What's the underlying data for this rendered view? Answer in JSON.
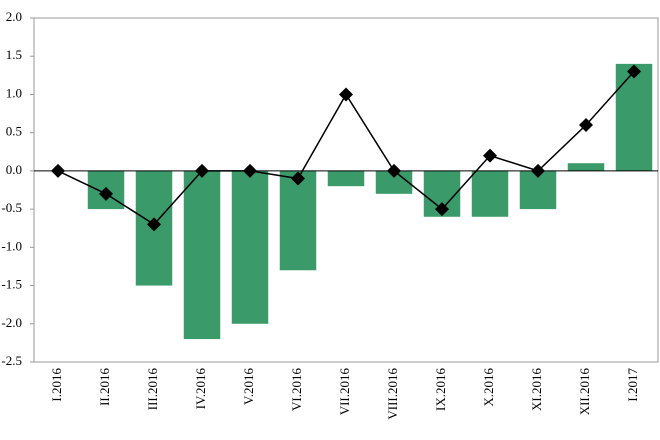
{
  "chart_data": {
    "type": "bar_line",
    "categories": [
      "I.2016",
      "II.2016",
      "III.2016",
      "IV.2016",
      "V.2016",
      "VI.2016",
      "VII.2016",
      "VIII.2016",
      "IX.2016",
      "X.2016",
      "XI.2016",
      "XII.2016",
      "I.2017"
    ],
    "series": [
      {
        "type": "bar",
        "color": "#3a9a6a",
        "values": [
          0,
          -0.5,
          -1.5,
          -2.2,
          -2.0,
          -1.3,
          -0.2,
          -0.3,
          -0.6,
          -0.6,
          -0.5,
          0.1,
          1.4
        ]
      },
      {
        "type": "line",
        "color": "#000000",
        "values": [
          0,
          -0.3,
          -0.7,
          0,
          0,
          -0.1,
          1.0,
          0,
          -0.5,
          0.2,
          0,
          0.6,
          1.3
        ]
      }
    ],
    "ylim": [
      -2.5,
      2.0
    ],
    "yticks": [
      {
        "value": 2.0,
        "label": "2.0"
      },
      {
        "value": 1.5,
        "label": "1.5"
      },
      {
        "value": 1.0,
        "label": "1.0"
      },
      {
        "value": 0.5,
        "label": "0.5"
      },
      {
        "value": 0,
        "label": "0.0"
      },
      {
        "value": -0.5,
        "label": "-0.5"
      },
      {
        "value": -1.0,
        "label": "-1.0"
      },
      {
        "value": -1.5,
        "label": "-1.5"
      },
      {
        "value": -2.0,
        "label": "-2.0"
      },
      {
        "value": -2.5,
        "label": "-2.5"
      }
    ],
    "grid": false
  }
}
